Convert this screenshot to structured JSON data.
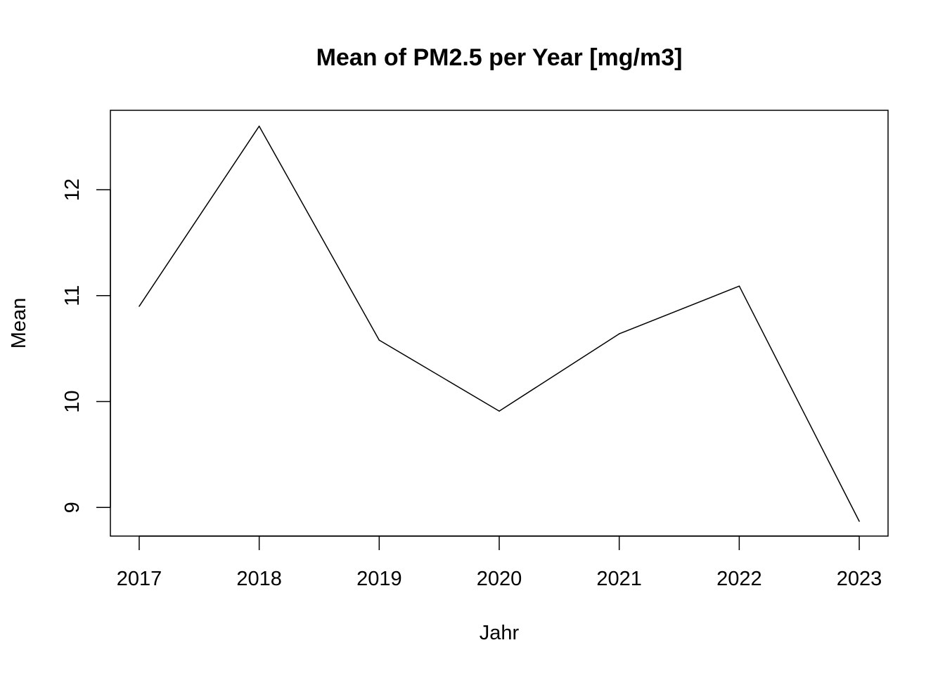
{
  "chart_data": {
    "type": "line",
    "title": "Mean of PM2.5 per Year [mg/m3]",
    "xlabel": "Jahr",
    "ylabel": "Mean",
    "x": [
      2017,
      2018,
      2019,
      2020,
      2021,
      2022,
      2023
    ],
    "x_tick_labels": [
      "2017",
      "2018",
      "2019",
      "2020",
      "2021",
      "2022",
      "2023"
    ],
    "y_ticks": [
      9,
      10,
      11,
      12
    ],
    "y_tick_labels": [
      "9",
      "10",
      "11",
      "12"
    ],
    "series": [
      {
        "values": [
          10.9,
          12.6,
          10.58,
          9.91,
          10.64,
          11.09,
          8.87
        ]
      }
    ],
    "xlim": [
      2016.76,
      2023.24
    ],
    "ylim": [
      8.73,
      12.75
    ],
    "grid": false,
    "legend": "none",
    "line_color": "#000000"
  }
}
